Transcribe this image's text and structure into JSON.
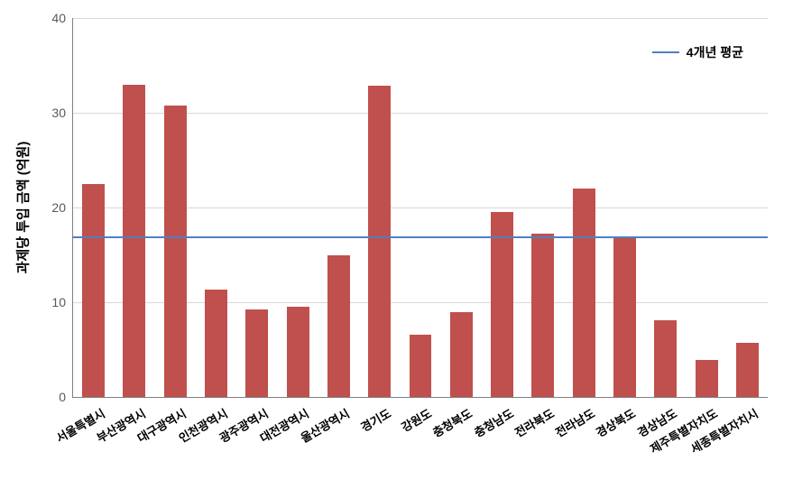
{
  "chart": {
    "type": "bar",
    "ylabel": "과제당 투입 금액 (억원)",
    "ylabel_fontsize": 15,
    "ylim": [
      0,
      40
    ],
    "ytick_step": 10,
    "yticks": [
      0,
      10,
      20,
      30,
      40
    ],
    "background_color": "#ffffff",
    "grid_color": "#d9d9d9",
    "axis_color": "#808080",
    "bar_color": "#c0504d",
    "bar_width_ratio": 0.55,
    "categories": [
      "서울특별시",
      "부산광역시",
      "대구광역시",
      "인천광역시",
      "광주광역시",
      "대전광역시",
      "울산광역시",
      "경기도",
      "강원도",
      "충청북도",
      "충청남도",
      "전라북도",
      "전라남도",
      "경상북도",
      "경상남도",
      "제주특별자치도",
      "세종특별자치시"
    ],
    "values": [
      22.5,
      33.0,
      30.8,
      11.3,
      9.2,
      9.5,
      15.0,
      32.9,
      6.6,
      9.0,
      19.5,
      17.2,
      22.0,
      16.8,
      8.1,
      3.9,
      5.7
    ],
    "avg_line": {
      "value": 17.0,
      "color": "#4f81bd",
      "label": "4개년 평균"
    },
    "xtick_label_fontsize": 13,
    "ytick_label_fontsize": 14,
    "xtick_rotation": -30
  }
}
